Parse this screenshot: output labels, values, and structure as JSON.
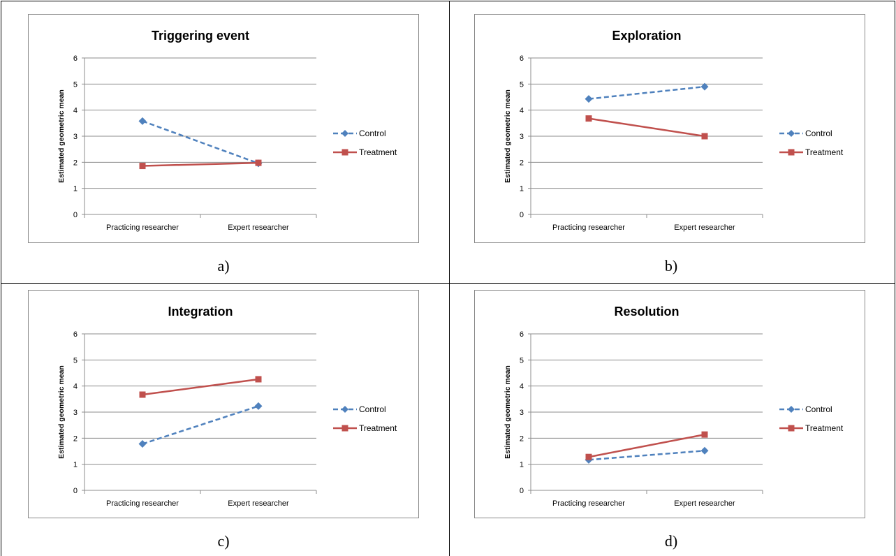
{
  "panels": [
    {
      "caption": "a)",
      "chart_data": {
        "type": "line",
        "title": "Triggering event",
        "ylabel": "Estimated geometric mean",
        "xlabel": "",
        "categories": [
          "Practicing researcher",
          "Expert researcher"
        ],
        "ylim": [
          0,
          6
        ],
        "yticks": [
          "0",
          "1",
          "2",
          "3",
          "4",
          "5",
          "6"
        ],
        "grid": true,
        "legend": "right",
        "series": [
          {
            "name": "Control",
            "values": [
              3.58,
              1.96
            ],
            "color": "#4f81bd",
            "style": "dashed",
            "marker": "diamond"
          },
          {
            "name": "Treatment",
            "values": [
              1.86,
              1.98
            ],
            "color": "#c0504d",
            "style": "solid",
            "marker": "square"
          }
        ]
      }
    },
    {
      "caption": "b)",
      "chart_data": {
        "type": "line",
        "title": "Exploration",
        "ylabel": "Estimated geometric mean",
        "xlabel": "",
        "categories": [
          "Practicing researcher",
          "Expert researcher"
        ],
        "ylim": [
          0,
          6
        ],
        "yticks": [
          "0",
          "1",
          "2",
          "3",
          "4",
          "5",
          "6"
        ],
        "grid": true,
        "legend": "right",
        "series": [
          {
            "name": "Control",
            "values": [
              4.43,
              4.9
            ],
            "color": "#4f81bd",
            "style": "dashed",
            "marker": "diamond"
          },
          {
            "name": "Treatment",
            "values": [
              3.68,
              3.0
            ],
            "color": "#c0504d",
            "style": "solid",
            "marker": "square"
          }
        ]
      }
    },
    {
      "caption": "c)",
      "chart_data": {
        "type": "line",
        "title": "Integration",
        "ylabel": "Estimated geometric mean",
        "xlabel": "",
        "categories": [
          "Practicing researcher",
          "Expert researcher"
        ],
        "ylim": [
          0,
          6
        ],
        "yticks": [
          "0",
          "1",
          "2",
          "3",
          "4",
          "5",
          "6"
        ],
        "grid": true,
        "legend": "right",
        "series": [
          {
            "name": "Control",
            "values": [
              1.78,
              3.23
            ],
            "color": "#4f81bd",
            "style": "dashed",
            "marker": "diamond"
          },
          {
            "name": "Treatment",
            "values": [
              3.67,
              4.26
            ],
            "color": "#c0504d",
            "style": "solid",
            "marker": "square"
          }
        ]
      }
    },
    {
      "caption": "d)",
      "chart_data": {
        "type": "line",
        "title": "Resolution",
        "ylabel": "Estimated geometric mean",
        "xlabel": "",
        "categories": [
          "Practicing researcher",
          "Expert researcher"
        ],
        "ylim": [
          0,
          6
        ],
        "yticks": [
          "0",
          "1",
          "2",
          "3",
          "4",
          "5",
          "6"
        ],
        "grid": true,
        "legend": "right",
        "series": [
          {
            "name": "Control",
            "values": [
              1.17,
              1.52
            ],
            "color": "#4f81bd",
            "style": "dashed",
            "marker": "diamond"
          },
          {
            "name": "Treatment",
            "values": [
              1.28,
              2.14
            ],
            "color": "#c0504d",
            "style": "solid",
            "marker": "square"
          }
        ]
      }
    }
  ]
}
